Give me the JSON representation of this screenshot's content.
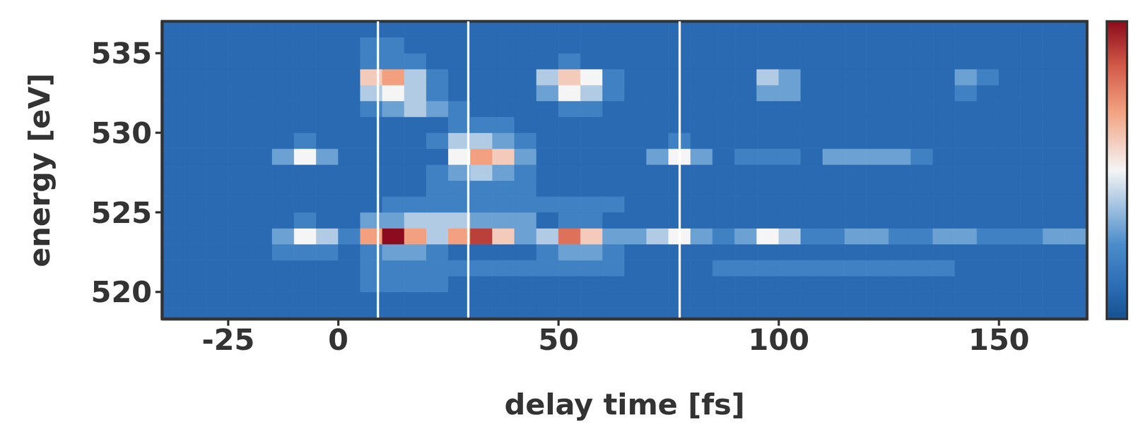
{
  "chart_data": {
    "type": "heatmap",
    "x_label": "delay time [fs]",
    "y_label": "energy [eV]",
    "xlim": [
      -40,
      170
    ],
    "ylim": [
      518.3,
      537
    ],
    "xticks": [
      -25,
      0,
      50,
      100,
      150
    ],
    "yticks": [
      520,
      525,
      530,
      535
    ],
    "x": [
      -37.5,
      -32.5,
      -27.5,
      -22.5,
      -17.5,
      -12.5,
      -7.5,
      -2.5,
      2.5,
      7.5,
      12.5,
      17.5,
      22.5,
      27.5,
      32.5,
      37.5,
      42.5,
      47.5,
      52.5,
      57.5,
      62.5,
      67.5,
      72.5,
      77.5,
      82.5,
      87.5,
      92.5,
      97.5,
      102.5,
      107.5,
      112.5,
      117.5,
      122.5,
      127.5,
      132.5,
      137.5,
      142.5,
      147.5,
      152.5,
      157.5,
      162.5,
      167.5
    ],
    "y": [
      518.5,
      519.5,
      520.5,
      521.5,
      522.5,
      523.5,
      524.5,
      525.5,
      526.5,
      527.5,
      528.5,
      529.5,
      530.5,
      531.5,
      532.5,
      533.5,
      534.5,
      535.5,
      536.5
    ],
    "z": [
      [
        1,
        1,
        1,
        1,
        1,
        1,
        1,
        1,
        1,
        1,
        1,
        1,
        1,
        1,
        1,
        1,
        1,
        1,
        1,
        1,
        1,
        1,
        1,
        1,
        1,
        1,
        1,
        1,
        1,
        1,
        1,
        1,
        1,
        1,
        1,
        1,
        1,
        1,
        1,
        1,
        1,
        1
      ],
      [
        1,
        1,
        1,
        1,
        1,
        1,
        1,
        1,
        1,
        1,
        1,
        1,
        1,
        1,
        1,
        1,
        1,
        1,
        1,
        1,
        1,
        1,
        1,
        1,
        1,
        1,
        1,
        1,
        1,
        1,
        1,
        1,
        1,
        1,
        1,
        1,
        1,
        1,
        1,
        1,
        1,
        1
      ],
      [
        1,
        1,
        1,
        1,
        1,
        1,
        1,
        1,
        1,
        2,
        2,
        2,
        2,
        1,
        1,
        1,
        1,
        1,
        1,
        1,
        1,
        1,
        1,
        1,
        1,
        1,
        1,
        1,
        1,
        1,
        1,
        1,
        1,
        1,
        1,
        1,
        1,
        1,
        1,
        1,
        1,
        1
      ],
      [
        1,
        1,
        1,
        1,
        1,
        1,
        1,
        1,
        1,
        2,
        2,
        2,
        2,
        2,
        2,
        2,
        2,
        2,
        2,
        2,
        2,
        1,
        1,
        1,
        1,
        2,
        2,
        2,
        2,
        2,
        2,
        2,
        2,
        2,
        2,
        2,
        1,
        1,
        1,
        1,
        1,
        1
      ],
      [
        1,
        1,
        1,
        1,
        1,
        2,
        2,
        2,
        1,
        2,
        3,
        3,
        2,
        1,
        1,
        1,
        1,
        2,
        3,
        3,
        2,
        1,
        1,
        1,
        1,
        1,
        1,
        1,
        1,
        1,
        1,
        1,
        1,
        1,
        1,
        1,
        1,
        1,
        1,
        1,
        1,
        1
      ],
      [
        1,
        1,
        1,
        1,
        1,
        3,
        5,
        4,
        2,
        7,
        10,
        7,
        4,
        7,
        9,
        6,
        3,
        4,
        8,
        6,
        3,
        3,
        4,
        5,
        3,
        2,
        3,
        5,
        4,
        2,
        2,
        3,
        3,
        2,
        2,
        3,
        3,
        2,
        2,
        2,
        3,
        3
      ],
      [
        1,
        1,
        1,
        1,
        1,
        1,
        2,
        1,
        1,
        3,
        3,
        4,
        4,
        4,
        3,
        3,
        3,
        1,
        2,
        2,
        1,
        1,
        1,
        1,
        1,
        1,
        1,
        1,
        1,
        1,
        1,
        1,
        1,
        1,
        1,
        1,
        1,
        1,
        1,
        1,
        1,
        1
      ],
      [
        1,
        1,
        1,
        1,
        1,
        1,
        1,
        1,
        1,
        1,
        2,
        2,
        2,
        2,
        2,
        2,
        2,
        2,
        2,
        2,
        2,
        1,
        1,
        1,
        1,
        1,
        1,
        1,
        1,
        1,
        1,
        1,
        1,
        1,
        1,
        1,
        1,
        1,
        1,
        1,
        1,
        1
      ],
      [
        1,
        1,
        1,
        1,
        1,
        1,
        1,
        1,
        1,
        1,
        1,
        1,
        2,
        2,
        2,
        2,
        2,
        1,
        1,
        1,
        1,
        1,
        1,
        1,
        1,
        1,
        1,
        1,
        1,
        1,
        1,
        1,
        1,
        1,
        1,
        1,
        1,
        1,
        1,
        1,
        1,
        1
      ],
      [
        1,
        1,
        1,
        1,
        1,
        1,
        1,
        1,
        1,
        1,
        1,
        1,
        2,
        3,
        4,
        3,
        2,
        1,
        1,
        1,
        1,
        1,
        1,
        1,
        1,
        1,
        1,
        1,
        1,
        1,
        1,
        1,
        1,
        1,
        1,
        1,
        1,
        1,
        1,
        1,
        1,
        1
      ],
      [
        1,
        1,
        1,
        1,
        1,
        3,
        5,
        3,
        1,
        1,
        1,
        1,
        1,
        5,
        7,
        6,
        3,
        1,
        1,
        1,
        1,
        1,
        3,
        5,
        3,
        1,
        2,
        2,
        2,
        1,
        3,
        3,
        3,
        3,
        2,
        1,
        1,
        1,
        1,
        1,
        1,
        1
      ],
      [
        1,
        1,
        1,
        1,
        1,
        1,
        2,
        1,
        1,
        1,
        1,
        1,
        2,
        4,
        4,
        3,
        2,
        1,
        1,
        1,
        1,
        1,
        1,
        2,
        1,
        1,
        1,
        1,
        1,
        1,
        1,
        1,
        1,
        1,
        1,
        1,
        1,
        1,
        1,
        1,
        1,
        1
      ],
      [
        1,
        1,
        1,
        1,
        1,
        1,
        1,
        1,
        1,
        1,
        1,
        1,
        1,
        2,
        2,
        2,
        1,
        1,
        1,
        1,
        1,
        1,
        1,
        1,
        1,
        1,
        1,
        1,
        1,
        1,
        1,
        1,
        1,
        1,
        1,
        1,
        1,
        1,
        1,
        1,
        1,
        1
      ],
      [
        1,
        1,
        1,
        1,
        1,
        1,
        1,
        1,
        1,
        2,
        3,
        4,
        3,
        2,
        1,
        1,
        1,
        1,
        2,
        2,
        1,
        1,
        1,
        1,
        1,
        1,
        1,
        1,
        1,
        1,
        1,
        1,
        1,
        1,
        1,
        1,
        1,
        1,
        1,
        1,
        1,
        1
      ],
      [
        1,
        1,
        1,
        1,
        1,
        1,
        1,
        1,
        1,
        4,
        5,
        4,
        2,
        1,
        1,
        1,
        1,
        3,
        5,
        4,
        2,
        1,
        1,
        1,
        1,
        1,
        1,
        3,
        3,
        1,
        1,
        1,
        1,
        1,
        1,
        1,
        2,
        1,
        1,
        1,
        1,
        1
      ],
      [
        1,
        1,
        1,
        1,
        1,
        1,
        1,
        1,
        1,
        6,
        7,
        4,
        2,
        1,
        1,
        1,
        1,
        4,
        6,
        5,
        2,
        1,
        1,
        1,
        1,
        1,
        1,
        4,
        3,
        1,
        1,
        1,
        1,
        1,
        1,
        1,
        3,
        2,
        1,
        1,
        1,
        1
      ],
      [
        1,
        1,
        1,
        1,
        1,
        1,
        1,
        1,
        1,
        2,
        2,
        2,
        1,
        1,
        1,
        1,
        1,
        1,
        2,
        1,
        1,
        1,
        1,
        1,
        1,
        1,
        1,
        1,
        1,
        1,
        1,
        1,
        1,
        1,
        1,
        1,
        1,
        1,
        1,
        1,
        1,
        1
      ],
      [
        1,
        1,
        1,
        1,
        1,
        1,
        1,
        1,
        1,
        2,
        2,
        1,
        1,
        1,
        1,
        1,
        1,
        1,
        1,
        1,
        1,
        1,
        1,
        1,
        1,
        1,
        1,
        1,
        1,
        1,
        1,
        1,
        1,
        1,
        1,
        1,
        1,
        1,
        1,
        1,
        1,
        1
      ],
      [
        1,
        1,
        1,
        1,
        1,
        1,
        1,
        1,
        1,
        1,
        1,
        1,
        1,
        1,
        1,
        1,
        1,
        1,
        1,
        1,
        1,
        1,
        1,
        1,
        1,
        1,
        1,
        1,
        1,
        1,
        1,
        1,
        1,
        1,
        1,
        1,
        1,
        1,
        1,
        1,
        1,
        1
      ]
    ],
    "zlim": [
      0,
      10
    ],
    "vlines": [
      9,
      29.5,
      77.5
    ]
  }
}
